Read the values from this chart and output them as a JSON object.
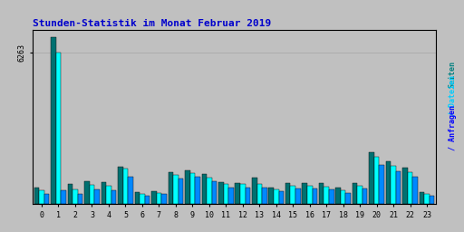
{
  "title": "Stunden-Statistik im Monat Februar 2019",
  "title_color": "#0000CC",
  "background_color": "#C0C0C0",
  "plot_bg_color": "#C0C0C0",
  "border_color": "#000000",
  "grid_color": "#AAAAAA",
  "ytick_label": "6263",
  "ymax": 7200,
  "hours": [
    0,
    1,
    2,
    3,
    4,
    5,
    6,
    7,
    8,
    9,
    10,
    11,
    12,
    13,
    14,
    15,
    16,
    17,
    18,
    19,
    20,
    21,
    22,
    23
  ],
  "series_seiten": [
    680,
    6900,
    820,
    930,
    900,
    1560,
    490,
    550,
    1340,
    1390,
    1230,
    910,
    870,
    1090,
    700,
    890,
    890,
    875,
    700,
    890,
    2150,
    1760,
    1500,
    510
  ],
  "series_dateien": [
    590,
    6263,
    620,
    800,
    775,
    1460,
    405,
    460,
    1220,
    1290,
    1080,
    825,
    820,
    840,
    610,
    765,
    765,
    735,
    590,
    765,
    1960,
    1600,
    1340,
    425
  ],
  "series_anfragen": [
    440,
    560,
    440,
    595,
    560,
    1130,
    365,
    410,
    1070,
    1150,
    960,
    690,
    690,
    695,
    520,
    630,
    630,
    620,
    465,
    630,
    1640,
    1350,
    1120,
    355
  ],
  "color_seiten": "#007070",
  "color_dateien": "#00FFFF",
  "color_anfragen": "#0088FF",
  "bar_width": 0.3,
  "figsize": [
    5.12,
    2.56
  ],
  "dpi": 100,
  "label_seiten_color": "#008080",
  "label_dateien_color": "#00CCFF",
  "label_anfragen_color": "#0000FF"
}
